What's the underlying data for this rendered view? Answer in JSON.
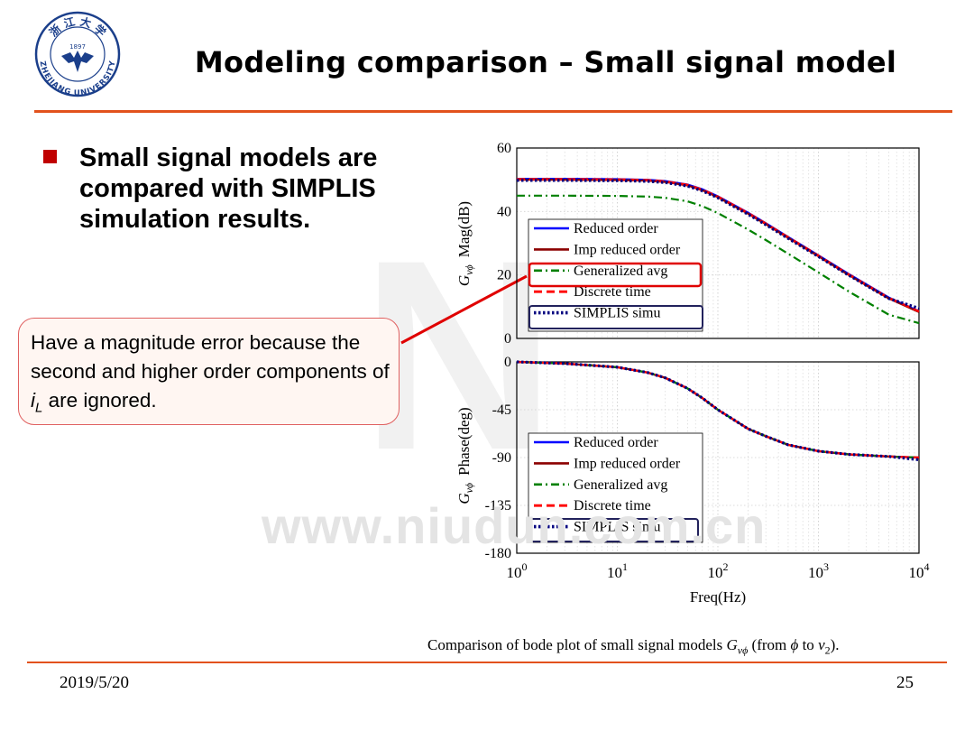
{
  "header": {
    "title": "Modeling comparison – Small signal model",
    "logo": {
      "top_text": "浙 江 大 学",
      "year": "1897",
      "bottom_text": "ZHEJIANG UNIVERSITY"
    }
  },
  "bullet": {
    "text": "Small signal models are compared with SIMPLIS simulation results."
  },
  "callout": {
    "text_before": "Have a magnitude error because the second and higher order components of ",
    "var": "i",
    "sub": "L",
    "text_after": " are ignored."
  },
  "watermark": {
    "text": "www.niudun.com.cn",
    "glyph": "N"
  },
  "caption": {
    "text_a": "Comparison of bode plot of small signal models ",
    "sym_G": "G",
    "sym_sub": "vϕ",
    "text_b": " (from ",
    "sym_phi": "ϕ",
    "text_c": " to ",
    "sym_v": "v",
    "sym_v_sub": "2",
    "text_d": ")."
  },
  "footer": {
    "date": "2019/5/20",
    "page": "25"
  },
  "colors": {
    "accent": "#e2521d",
    "bullet": "#c00000",
    "highlight": "#e00000",
    "simplis_box": "#22225c"
  },
  "chart_data": [
    {
      "type": "line",
      "panel": "magnitude",
      "ylabel_G": "G",
      "ylabel_sub": "vϕ",
      "ylabel": "Mag(dB)",
      "xscale": "log",
      "xlim": [
        1,
        10000
      ],
      "ylim": [
        0,
        60
      ],
      "yticks": [
        "0",
        "20",
        "40",
        "60"
      ],
      "grid": true,
      "legend_position": "center-left",
      "highlight_legend_entry": "Generalized avg",
      "boxed_legend_entry": "SIMPLIS simu",
      "series": [
        {
          "name": "Reduced order",
          "color": "#0000ff",
          "style": "solid",
          "x": [
            1,
            3,
            10,
            20,
            30,
            50,
            70,
            100,
            200,
            300,
            500,
            1000,
            2000,
            5000,
            10000
          ],
          "y": [
            50.3,
            50.3,
            50.2,
            50.0,
            49.6,
            48.5,
            47.0,
            44.8,
            39.6,
            36.3,
            32.0,
            26.2,
            20.3,
            12.9,
            8.6
          ]
        },
        {
          "name": "Imp reduced order",
          "color": "#8b0000",
          "style": "solid",
          "x": [
            1,
            3,
            10,
            20,
            30,
            50,
            70,
            100,
            200,
            300,
            500,
            1000,
            2000,
            5000,
            10000
          ],
          "y": [
            50.0,
            50.0,
            49.9,
            49.7,
            49.3,
            48.2,
            46.7,
            44.5,
            39.3,
            36.0,
            31.7,
            25.9,
            20.0,
            12.6,
            8.3
          ]
        },
        {
          "name": "Generalized avg",
          "color": "#008000",
          "style": "dash-dot",
          "x": [
            1,
            3,
            10,
            20,
            30,
            50,
            70,
            100,
            200,
            300,
            500,
            1000,
            2000,
            5000,
            10000
          ],
          "y": [
            45.0,
            45.0,
            44.9,
            44.7,
            44.3,
            43.2,
            41.7,
            39.5,
            34.3,
            31.0,
            26.7,
            20.8,
            14.8,
            7.5,
            4.8
          ]
        },
        {
          "name": "Discrete time",
          "color": "#ff0000",
          "style": "dashed",
          "x": [
            1,
            3,
            10,
            20,
            30,
            50,
            70,
            100,
            200,
            300,
            500,
            1000,
            2000,
            5000,
            10000
          ],
          "y": [
            50.2,
            50.2,
            50.1,
            49.9,
            49.5,
            48.4,
            46.9,
            44.7,
            39.5,
            36.2,
            31.9,
            26.1,
            20.2,
            12.8,
            8.5
          ]
        },
        {
          "name": "SIMPLIS simu",
          "color": "#000080",
          "style": "dotted",
          "x": [
            1,
            3,
            10,
            20,
            30,
            50,
            70,
            100,
            200,
            300,
            500,
            1000,
            2000,
            5000,
            10000
          ],
          "y": [
            49.8,
            49.8,
            49.7,
            49.5,
            49.1,
            48.0,
            46.5,
            44.3,
            39.1,
            35.8,
            31.5,
            25.8,
            19.9,
            12.6,
            9.5
          ]
        }
      ]
    },
    {
      "type": "line",
      "panel": "phase",
      "ylabel_G": "G",
      "ylabel_sub": "vϕ",
      "ylabel": "Phase(deg)",
      "xlabel": "Freq(Hz)",
      "xscale": "log",
      "xlim": [
        1,
        10000
      ],
      "xticks": [
        {
          "base": "10",
          "exp": "0"
        },
        {
          "base": "10",
          "exp": "1"
        },
        {
          "base": "10",
          "exp": "2"
        },
        {
          "base": "10",
          "exp": "3"
        },
        {
          "base": "10",
          "exp": "4"
        }
      ],
      "ylim": [
        -180,
        0
      ],
      "yticks": [
        "-180",
        "-135",
        "-90",
        "-45",
        "0"
      ],
      "grid": true,
      "legend_position": "bottom-left",
      "boxed_legend_entry": "SIMPLIS simu",
      "series": [
        {
          "name": "Reduced order",
          "color": "#0000ff",
          "style": "solid",
          "x": [
            1,
            3,
            10,
            20,
            30,
            50,
            70,
            100,
            200,
            300,
            500,
            1000,
            2000,
            5000,
            10000
          ],
          "y": [
            0,
            -1.5,
            -5,
            -10,
            -15,
            -25,
            -34,
            -45,
            -63,
            -70,
            -78,
            -84,
            -87,
            -89,
            -90
          ]
        },
        {
          "name": "Imp reduced order",
          "color": "#8b0000",
          "style": "solid",
          "x": [
            1,
            3,
            10,
            20,
            30,
            50,
            70,
            100,
            200,
            300,
            500,
            1000,
            2000,
            5000,
            10000
          ],
          "y": [
            0,
            -1.5,
            -5,
            -10,
            -15,
            -25,
            -34,
            -45,
            -63,
            -70,
            -78,
            -84,
            -87,
            -89,
            -90
          ]
        },
        {
          "name": "Generalized avg",
          "color": "#008000",
          "style": "dash-dot",
          "x": [
            1,
            3,
            10,
            20,
            30,
            50,
            70,
            100,
            200,
            300,
            500,
            1000,
            2000,
            5000,
            10000
          ],
          "y": [
            0,
            -1.5,
            -5,
            -10,
            -15,
            -25,
            -34,
            -45,
            -63,
            -70,
            -78,
            -84,
            -87,
            -89,
            -90
          ]
        },
        {
          "name": "Discrete time",
          "color": "#ff0000",
          "style": "dashed",
          "x": [
            1,
            3,
            10,
            20,
            30,
            50,
            70,
            100,
            200,
            300,
            500,
            1000,
            2000,
            5000,
            10000
          ],
          "y": [
            0,
            -1.5,
            -5,
            -10,
            -15,
            -25,
            -34,
            -45,
            -63,
            -70,
            -78,
            -84,
            -87,
            -89,
            -90
          ]
        },
        {
          "name": "SIMPLIS simu",
          "color": "#000080",
          "style": "dotted",
          "x": [
            1,
            3,
            10,
            20,
            30,
            50,
            70,
            100,
            200,
            300,
            500,
            1000,
            2000,
            5000,
            10000
          ],
          "y": [
            0,
            -1.5,
            -5,
            -10,
            -15,
            -25,
            -34,
            -45,
            -63,
            -70,
            -78,
            -84,
            -87,
            -89,
            -92
          ]
        }
      ]
    }
  ]
}
